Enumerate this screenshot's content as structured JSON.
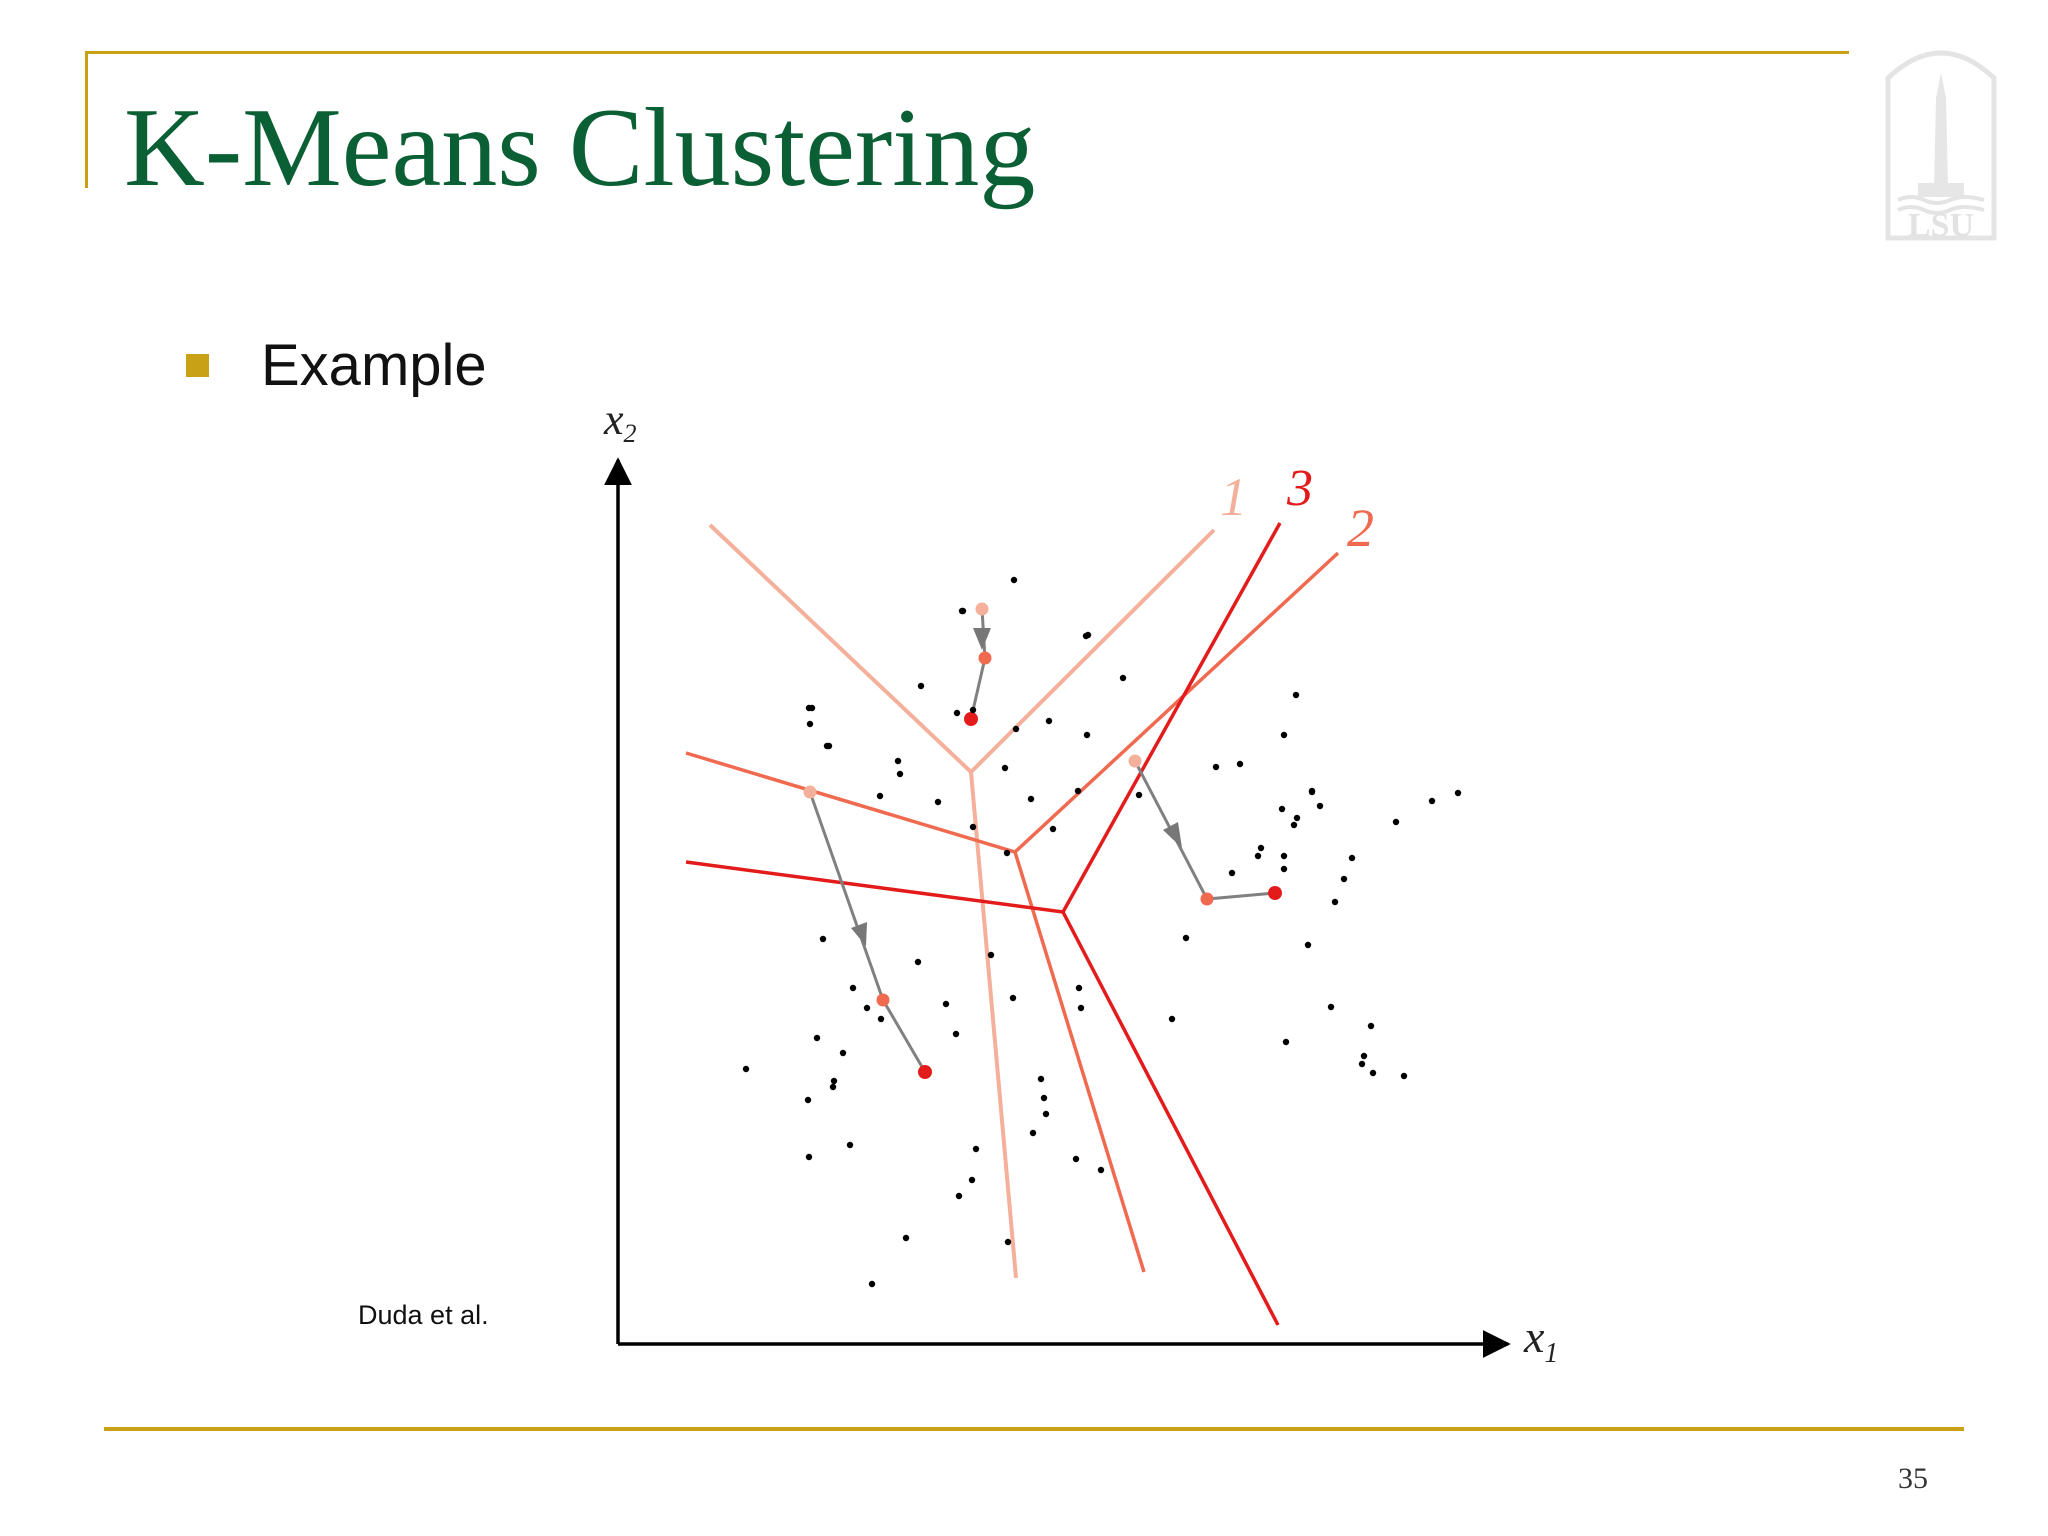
{
  "slide": {
    "title": "K-Means Clustering",
    "bullet": "Example",
    "citation": "Duda et al.",
    "page_number": "35",
    "logo_text": "LSU"
  },
  "diagram": {
    "x_axis_label": "x",
    "x_axis_subscript": "1",
    "y_axis_label": "x",
    "y_axis_subscript": "2",
    "iterations": [
      {
        "label": "1",
        "color": "#f4b09a"
      },
      {
        "label": "2",
        "color": "#f06a50"
      },
      {
        "label": "3",
        "color": "#e41b1b"
      }
    ],
    "trajectory_color": "#808080"
  },
  "colors": {
    "title": "#0b5f34",
    "accent": "#c9a116",
    "points": "#000000"
  }
}
